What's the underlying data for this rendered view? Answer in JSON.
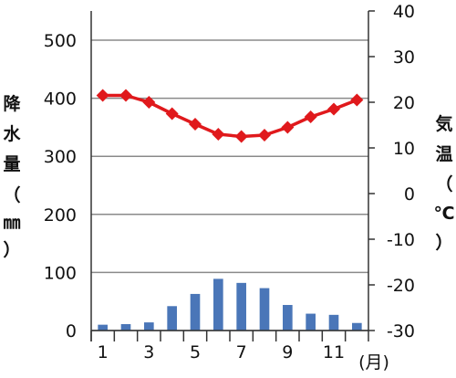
{
  "chart_data": {
    "type": "bar+line",
    "categories": [
      "1",
      "2",
      "3",
      "4",
      "5",
      "6",
      "7",
      "8",
      "9",
      "10",
      "11",
      "12"
    ],
    "x_tick_labels": [
      "1",
      "3",
      "5",
      "7",
      "9",
      "11"
    ],
    "x_unit_label": "(月)",
    "precipitation": {
      "type": "bar",
      "axis": "left",
      "values": [
        10,
        11,
        14,
        42,
        63,
        89,
        82,
        73,
        44,
        29,
        27,
        13
      ],
      "color": "#4a76b8"
    },
    "temperature": {
      "type": "line",
      "axis": "right",
      "values": [
        21.5,
        21.5,
        20.0,
        17.5,
        15.2,
        13.0,
        12.5,
        12.8,
        14.5,
        16.8,
        18.5,
        20.5
      ],
      "color": "#e0191c"
    },
    "y_left": {
      "label_chars": [
        "降",
        "水",
        "量",
        "（",
        "㎜",
        "）"
      ],
      "range": [
        0,
        500
      ],
      "ticks": [
        "0",
        "100",
        "200",
        "300",
        "400",
        "500"
      ]
    },
    "y_right": {
      "label_chars": [
        "気",
        "温",
        "（",
        "℃",
        "）"
      ],
      "range": [
        -30,
        40
      ],
      "ticks": [
        "-30",
        "-20",
        "-10",
        "0",
        "10",
        "20",
        "30",
        "40"
      ]
    },
    "grid": true
  }
}
